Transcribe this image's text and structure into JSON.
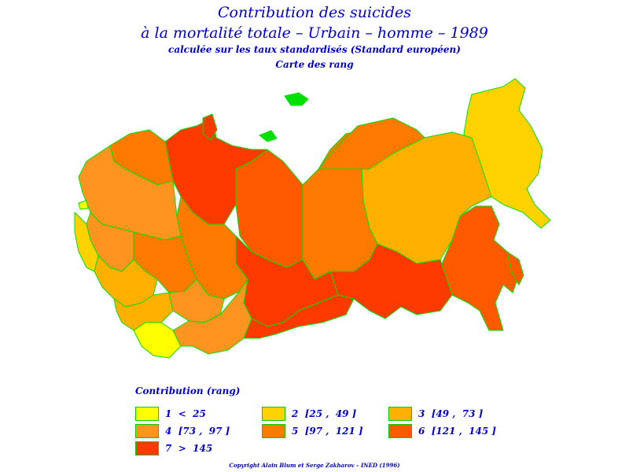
{
  "title": {
    "line1": "Contribution des suicides",
    "line2": "à la mortalité totale – Urbain – homme – 1989",
    "line3": "calculée sur les taux standardisés (Standard européen)",
    "line4": "Carte des rang"
  },
  "colors": {
    "border": "#00e000",
    "c1": "#ffff00",
    "c2": "#ffd200",
    "c3": "#ffb000",
    "c4": "#ff9420",
    "c5": "#ff7a00",
    "c6": "#ff5a00",
    "c7": "#ff3a00"
  },
  "legend": {
    "title": "Contribution (rang)",
    "items": [
      {
        "label": "1  <  25",
        "color": "#ffff00"
      },
      {
        "label": "2  [25 ,  49 ]",
        "color": "#ffd200"
      },
      {
        "label": "3  [49 ,  73 ]",
        "color": "#ffb000"
      },
      {
        "label": "4  [73 ,  97 ]",
        "color": "#ff9420"
      },
      {
        "label": "5  [97 ,  121 ]",
        "color": "#ff7a00"
      },
      {
        "label": "6  [121 ,  145 ]",
        "color": "#ff5a00"
      },
      {
        "label": "7  >  145",
        "color": "#ff3a00"
      }
    ]
  },
  "copyright": "Copyright Alain Blum et Serge Zakharov – INED (1996)"
}
